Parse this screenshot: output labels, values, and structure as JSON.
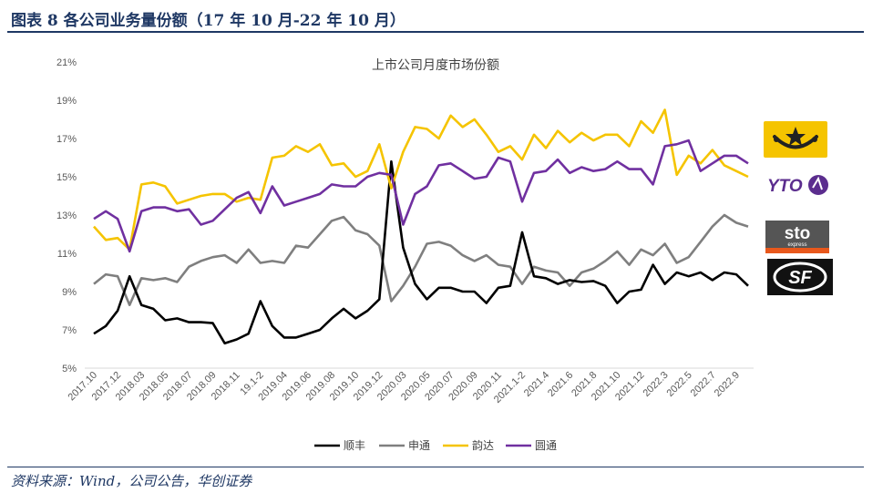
{
  "header": {
    "title": "图表 8 各公司业务量份额（17 年 10 月-22 年 10 月）"
  },
  "footer": {
    "source": "资料来源：Wind，公司公告，华创证券"
  },
  "logos": [
    {
      "name": "韵达",
      "text": "",
      "bg": "#f5c400",
      "fg": "#222222"
    },
    {
      "name": "圆通",
      "text": "YTO",
      "bg": "#ffffff",
      "fg": "#5b2d8e"
    },
    {
      "name": "申通",
      "text": "sto",
      "sub": "express",
      "bg": "#555555",
      "fg": "#ffffff",
      "accent": "#e8581c"
    },
    {
      "name": "顺丰",
      "text": "SF",
      "bg": "#111111",
      "fg": "#ffffff"
    }
  ],
  "chart_data": {
    "type": "line",
    "title": "上市公司月度市场份额",
    "ylim": [
      5,
      21
    ],
    "yticks": [
      "5%",
      "7%",
      "9%",
      "11%",
      "13%",
      "15%",
      "17%",
      "19%",
      "21%"
    ],
    "ytick_values": [
      5,
      7,
      9,
      11,
      13,
      15,
      17,
      19,
      21
    ],
    "grid": false,
    "legend_position": "bottom",
    "x_tick_labels": [
      "2017.10",
      "2017.12",
      "2018.03",
      "2018.05",
      "2018.07",
      "2018.09",
      "2018.11",
      "19.1-2",
      "2019.04",
      "2019.06",
      "2019.08",
      "2019.10",
      "2019.12",
      "2020.03",
      "2020.05",
      "2020.07",
      "2020.09",
      "2020.11",
      "2021.1-2",
      "2021.4",
      "2021.6",
      "2021.8",
      "2021.10",
      "2021.12",
      "2022.3",
      "2022.5",
      "2022.7",
      "2022.9"
    ],
    "x_tick_index": [
      0,
      2,
      4,
      6,
      8,
      10,
      12,
      14,
      16,
      18,
      20,
      22,
      24,
      26,
      28,
      30,
      32,
      34,
      36,
      38,
      40,
      42,
      44,
      46,
      48,
      50,
      52,
      54
    ],
    "n_points": 56,
    "series": [
      {
        "name": "顺丰",
        "color": "#000000",
        "values": [
          6.8,
          7.2,
          8.0,
          9.8,
          8.3,
          8.1,
          7.5,
          7.6,
          7.4,
          7.4,
          7.35,
          6.3,
          6.5,
          6.8,
          8.5,
          7.2,
          6.6,
          6.6,
          6.8,
          7.0,
          7.6,
          8.1,
          7.6,
          8.0,
          8.6,
          15.8,
          11.3,
          9.4,
          8.6,
          9.2,
          9.2,
          9.0,
          9.0,
          8.4,
          9.2,
          9.3,
          12.1,
          9.8,
          9.7,
          9.4,
          9.6,
          9.5,
          9.55,
          9.3,
          8.4,
          9.0,
          9.1,
          10.4,
          9.4,
          10.0,
          9.8,
          10.0,
          9.6,
          10.0,
          9.9,
          9.3
        ]
      },
      {
        "name": "申通",
        "color": "#7f7f7f",
        "values": [
          9.4,
          9.9,
          9.8,
          8.3,
          9.7,
          9.6,
          9.7,
          9.5,
          10.3,
          10.6,
          10.8,
          10.9,
          10.5,
          11.2,
          10.5,
          10.6,
          10.5,
          11.4,
          11.3,
          12.0,
          12.7,
          12.9,
          12.2,
          12.0,
          11.4,
          8.5,
          9.3,
          10.3,
          11.5,
          11.6,
          11.4,
          10.9,
          10.6,
          10.9,
          10.4,
          10.3,
          9.4,
          10.3,
          10.1,
          10.0,
          9.3,
          10.0,
          10.2,
          10.6,
          11.1,
          10.4,
          11.2,
          10.9,
          11.5,
          10.5,
          10.8,
          11.6,
          12.4,
          13.0,
          12.6,
          12.4
        ]
      },
      {
        "name": "韵达",
        "color": "#f5c400",
        "values": [
          12.4,
          11.7,
          11.8,
          11.2,
          14.6,
          14.7,
          14.5,
          13.6,
          13.8,
          14.0,
          14.1,
          14.1,
          13.7,
          13.9,
          13.8,
          16.0,
          16.1,
          16.6,
          16.3,
          16.7,
          15.6,
          15.7,
          15.0,
          15.3,
          16.7,
          14.4,
          16.3,
          17.6,
          17.5,
          17.0,
          18.2,
          17.6,
          18.0,
          17.2,
          16.3,
          16.6,
          15.9,
          17.2,
          16.5,
          17.4,
          16.8,
          17.3,
          16.9,
          17.2,
          17.2,
          16.6,
          17.9,
          17.3,
          18.5,
          15.1,
          16.1,
          15.7,
          16.4,
          15.6,
          15.3,
          15.0
        ]
      },
      {
        "name": "圆通",
        "color": "#7030a0",
        "values": [
          12.8,
          13.2,
          12.8,
          11.1,
          13.2,
          13.4,
          13.4,
          13.2,
          13.3,
          12.5,
          12.7,
          13.3,
          13.9,
          14.2,
          13.1,
          14.5,
          13.5,
          13.7,
          13.9,
          14.1,
          14.6,
          14.5,
          14.5,
          15.0,
          15.2,
          15.1,
          12.5,
          14.1,
          14.5,
          15.6,
          15.7,
          15.3,
          14.9,
          15.0,
          16.0,
          15.8,
          13.7,
          15.2,
          15.3,
          15.9,
          15.2,
          15.5,
          15.3,
          15.4,
          15.8,
          15.4,
          15.4,
          14.6,
          16.6,
          16.7,
          16.9,
          15.3,
          15.7,
          16.1,
          16.1,
          15.7
        ]
      }
    ]
  }
}
